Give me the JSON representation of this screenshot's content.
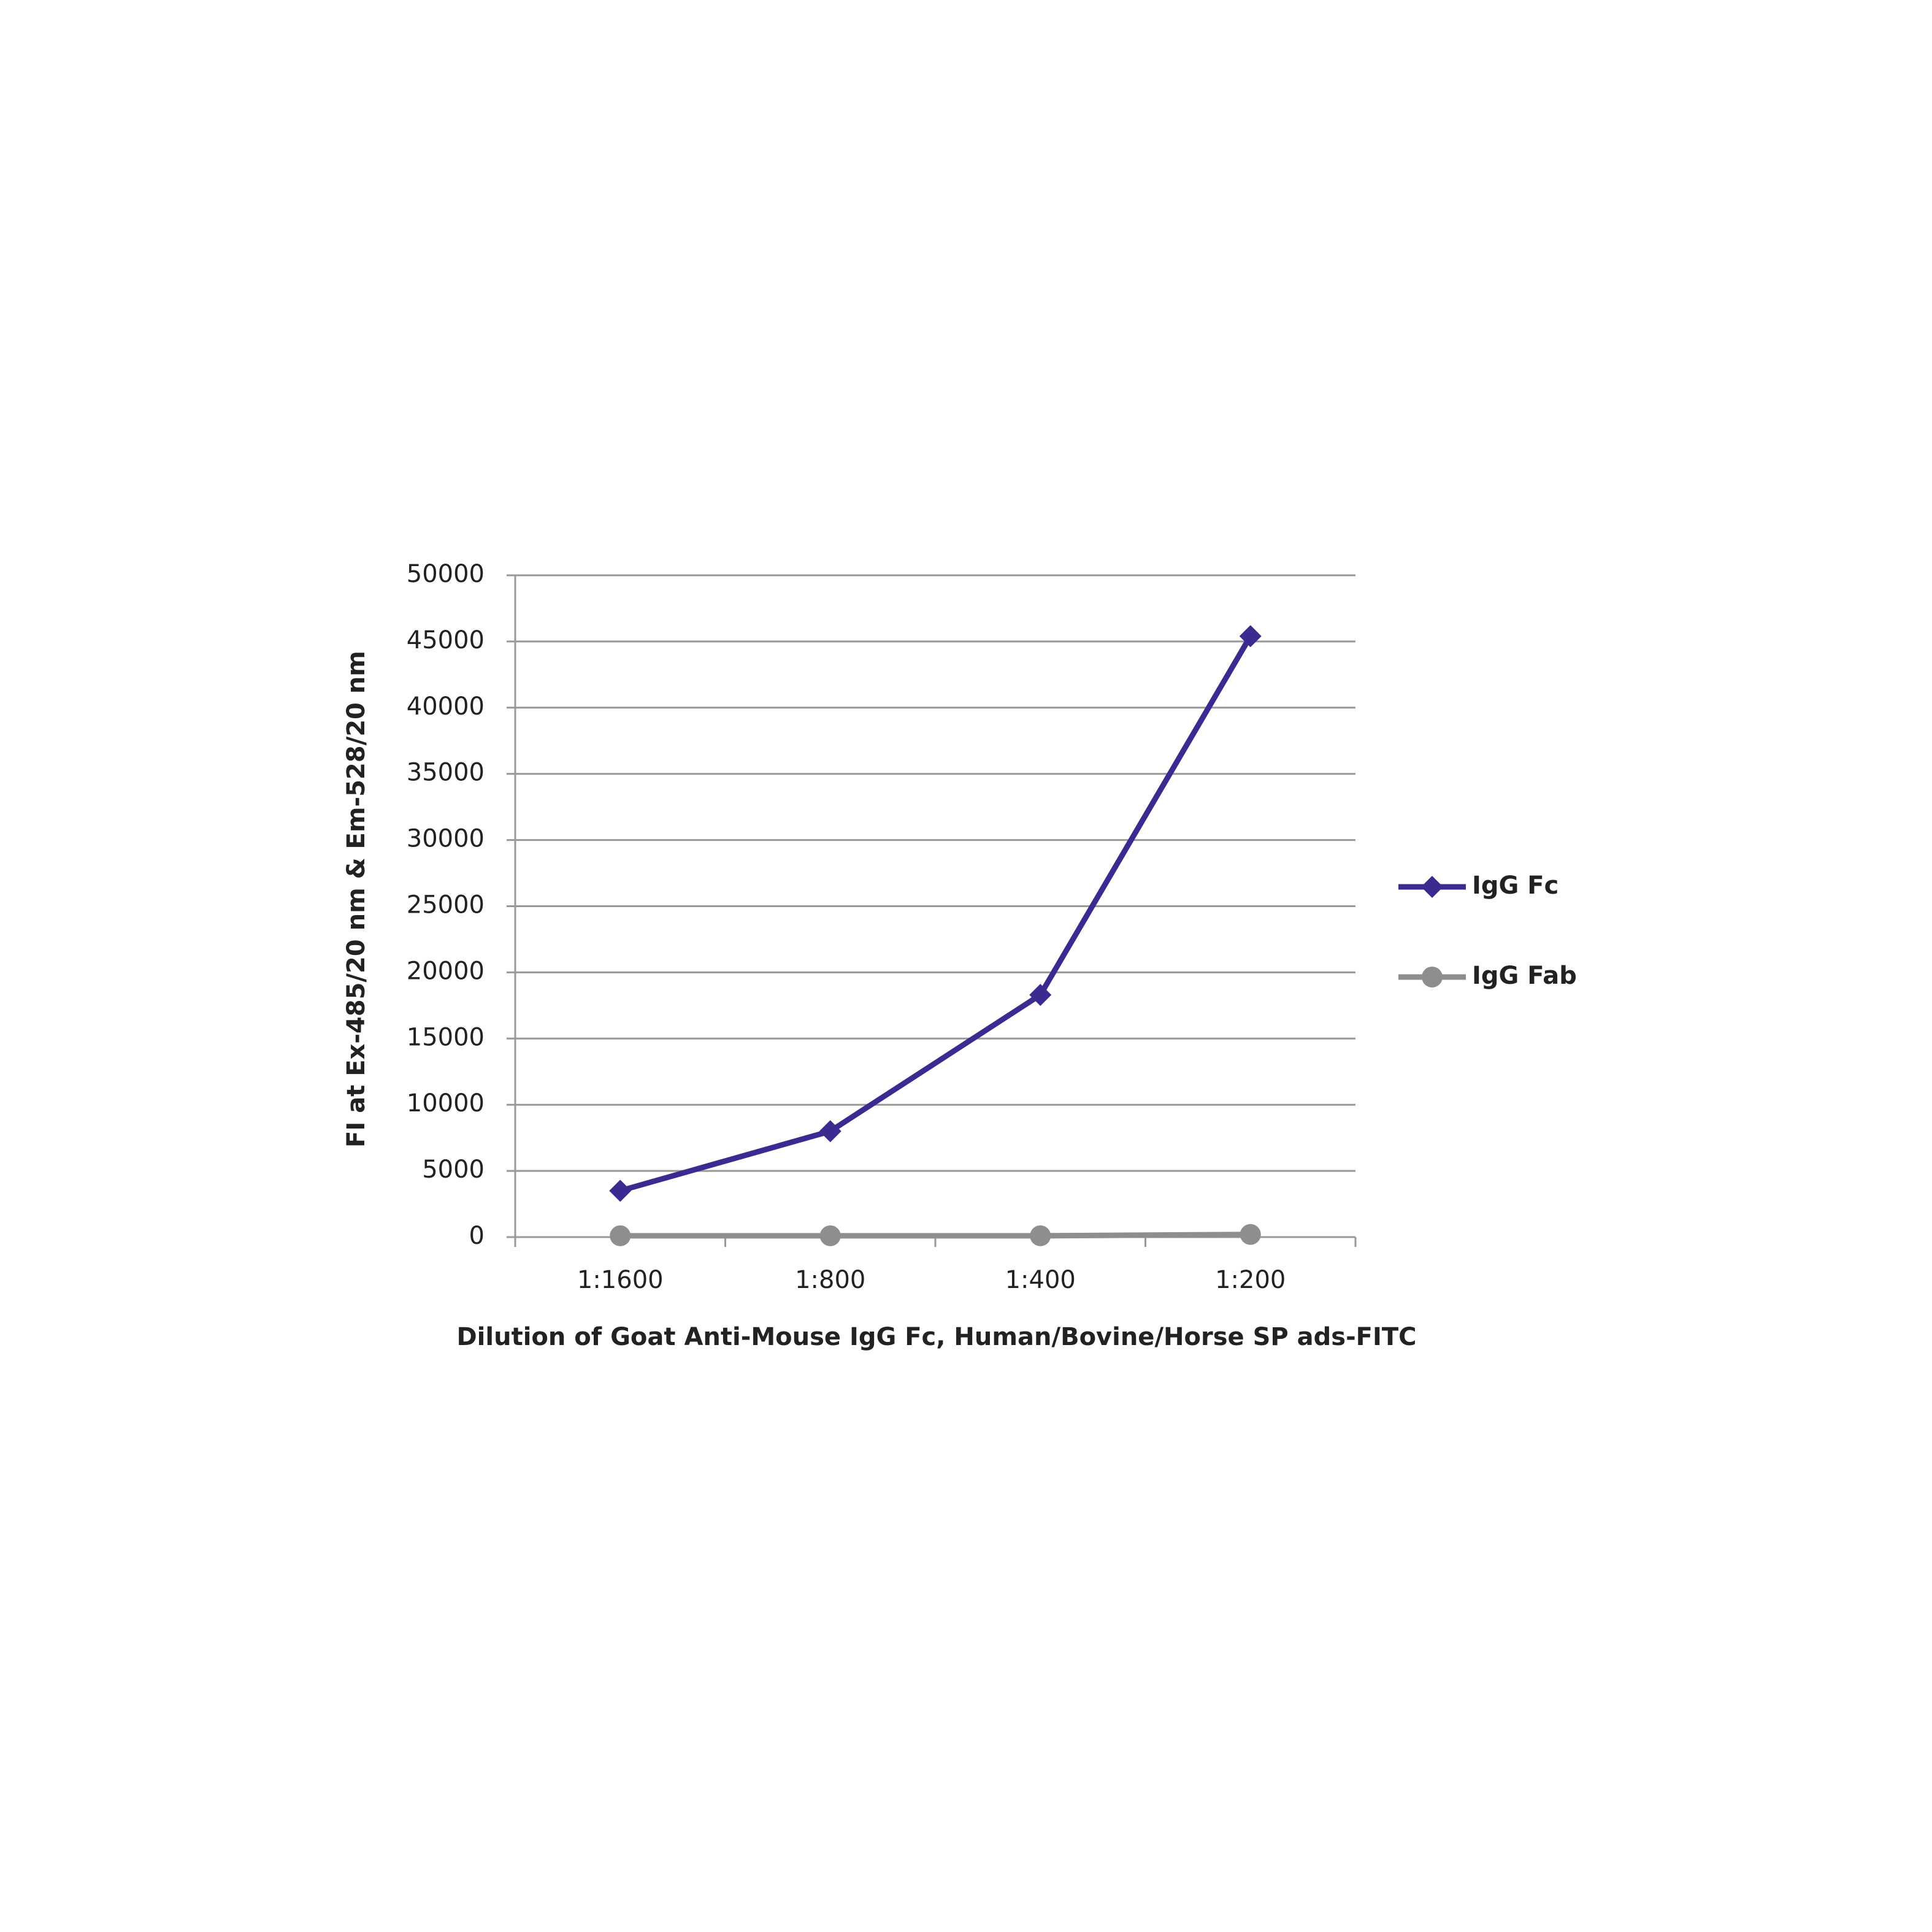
{
  "chart_data": {
    "type": "line",
    "x_label": "Dilution of Goat Anti-Mouse IgG Fc, Human/Bovine/Horse SP ads-FITC",
    "y_label": "FI at Ex-485/20 nm & Em-528/20 nm",
    "categories": [
      "1:1600",
      "1:800",
      "1:400",
      "1:200"
    ],
    "series": [
      {
        "name": "IgG Fc",
        "color": "#3a2b90",
        "marker": "diamond",
        "values": [
          3500,
          8000,
          18300,
          45400
        ]
      },
      {
        "name": "IgG Fab",
        "color": "#8e8e8e",
        "marker": "circle",
        "values": [
          100,
          100,
          100,
          200
        ]
      }
    ],
    "ylim": [
      0,
      50000
    ],
    "yticks": [
      0,
      5000,
      10000,
      15000,
      20000,
      25000,
      30000,
      35000,
      40000,
      45000,
      50000
    ],
    "grid": true,
    "legend": "right"
  }
}
